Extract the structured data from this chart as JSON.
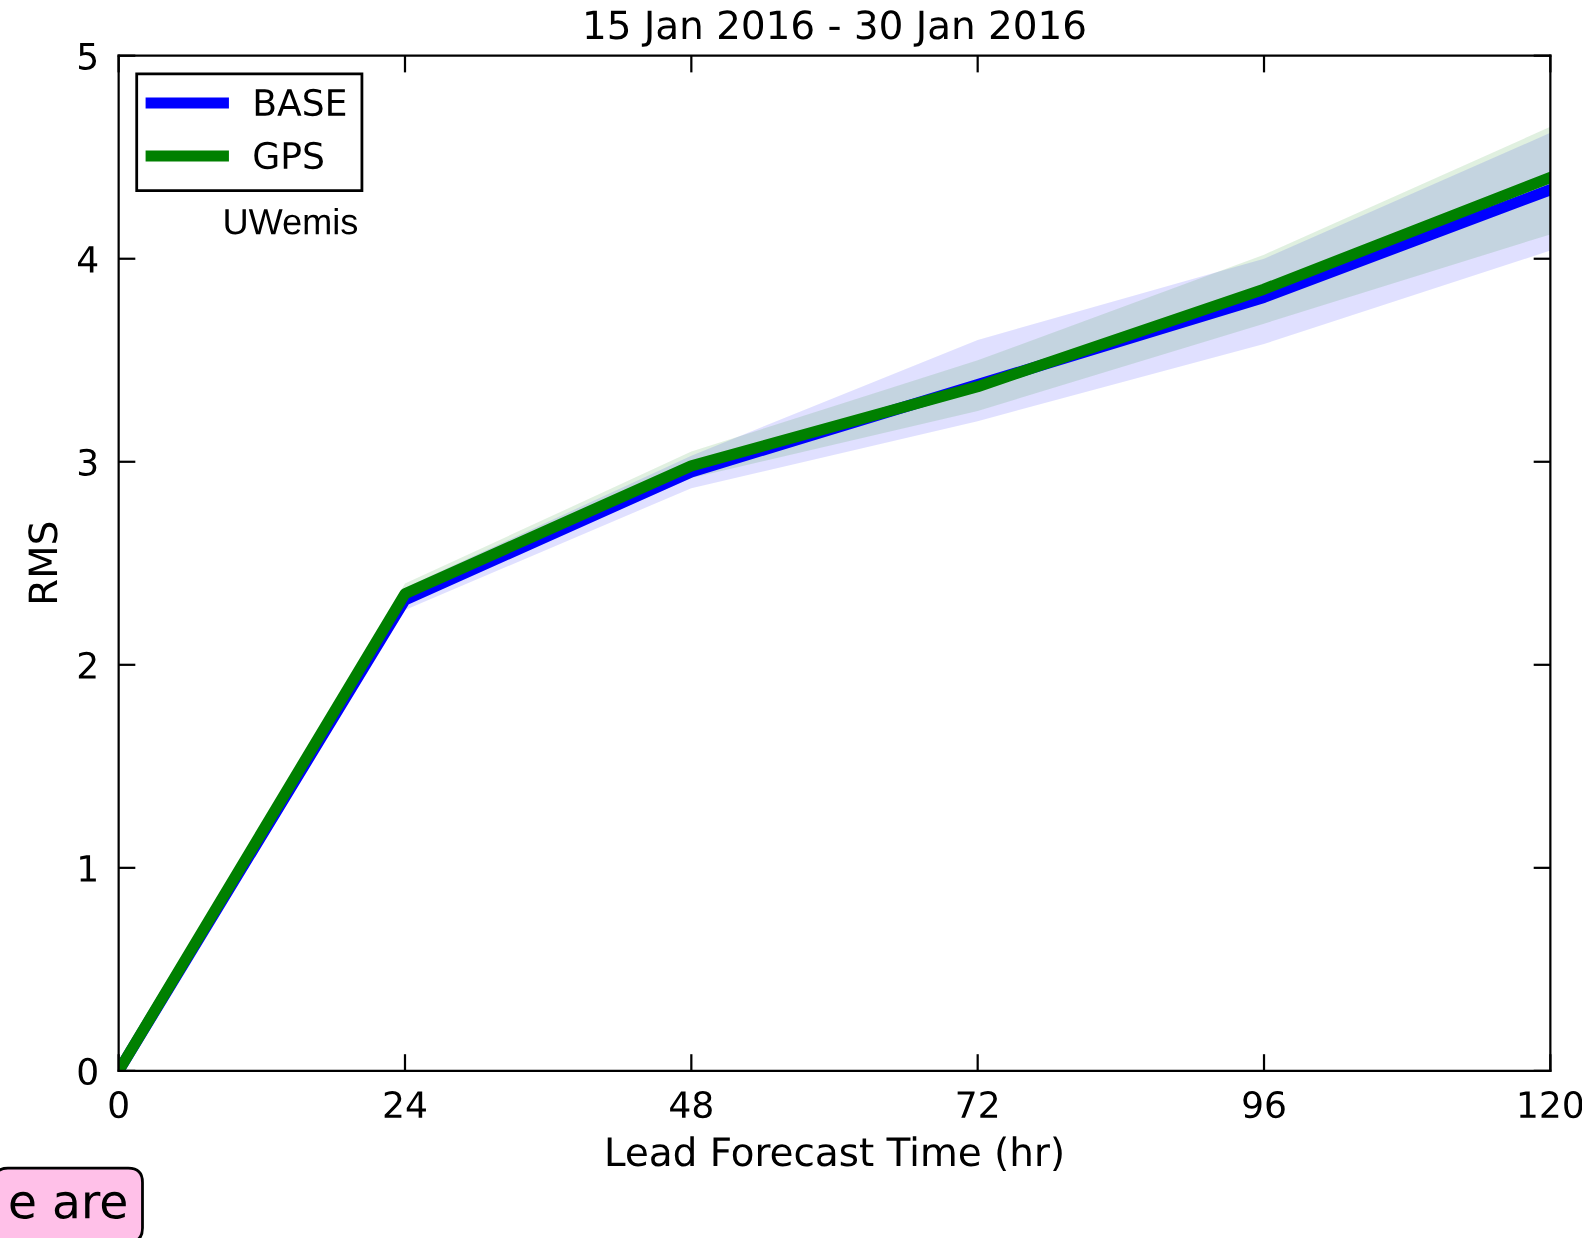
{
  "chart_data": {
    "type": "line",
    "title": "15 Jan 2016 - 30 Jan 2016",
    "xlabel": "Lead Forecast Time (hr)",
    "ylabel": "RMS",
    "x": [
      0,
      24,
      48,
      72,
      96,
      120
    ],
    "series": [
      {
        "name": "BASE",
        "color": "#0000ff",
        "values": [
          0,
          2.32,
          2.95,
          3.38,
          3.81,
          4.34
        ],
        "lower": [
          0,
          2.27,
          2.87,
          3.2,
          3.58,
          4.04
        ],
        "upper": [
          0,
          2.38,
          3.03,
          3.6,
          4.0,
          4.62
        ]
      },
      {
        "name": "GPS",
        "color": "#008000",
        "values": [
          0,
          2.35,
          2.98,
          3.37,
          3.85,
          4.4
        ],
        "lower": [
          0,
          2.3,
          2.92,
          3.25,
          3.68,
          4.12
        ],
        "upper": [
          0,
          2.4,
          3.05,
          3.5,
          4.02,
          4.65
        ]
      }
    ],
    "xlim": [
      0,
      120
    ],
    "xticks": [
      0,
      24,
      48,
      72,
      96,
      120
    ],
    "ylim": [
      0,
      5
    ],
    "yticks": [
      0,
      1,
      2,
      3,
      4,
      5
    ],
    "grid": false,
    "legend": "top left",
    "annotations": [
      "UWemis",
      "e are"
    ]
  }
}
